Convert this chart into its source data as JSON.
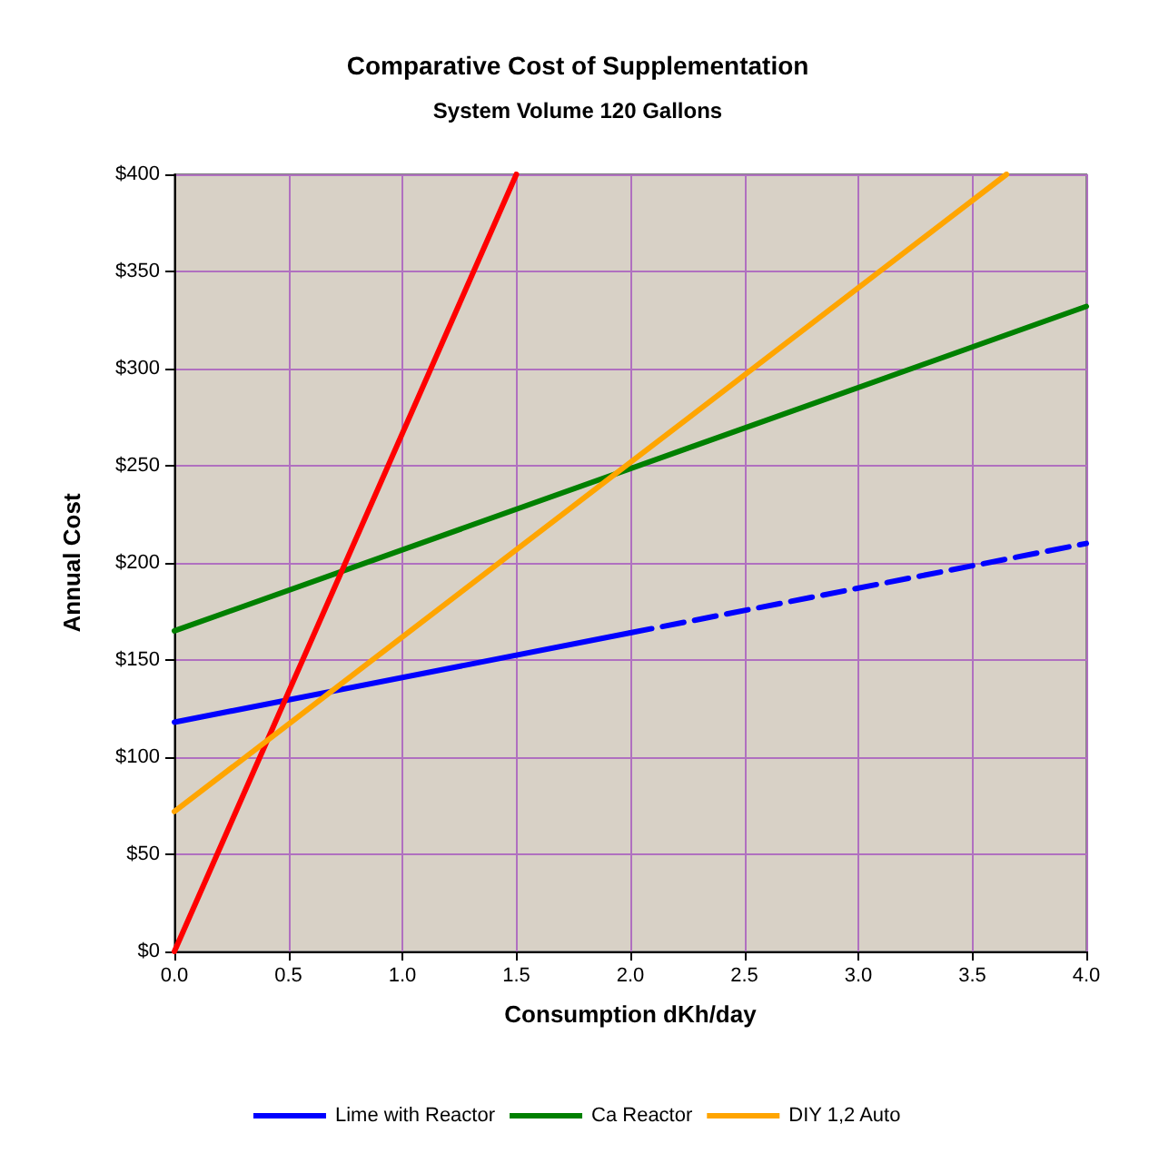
{
  "chart_data": {
    "type": "line",
    "title": "Comparative Cost of Supplementation",
    "subtitle": "System Volume 120 Gallons",
    "xlabel": "Consumption dKh/day",
    "ylabel": "Annual Cost",
    "xlim": [
      0,
      4
    ],
    "xticks": [
      {
        "value": 0,
        "label": "0.0"
      },
      {
        "value": 0.5,
        "label": "0.5"
      },
      {
        "value": 1,
        "label": "1.0"
      },
      {
        "value": 1.5,
        "label": "1.5"
      },
      {
        "value": 2,
        "label": "2.0"
      },
      {
        "value": 2.5,
        "label": "2.5"
      },
      {
        "value": 3,
        "label": "3.0"
      },
      {
        "value": 3.5,
        "label": "3.5"
      },
      {
        "value": 4,
        "label": "4.0"
      }
    ],
    "ylim": [
      0,
      400
    ],
    "yticks": [
      {
        "value": 0,
        "label": "$0"
      },
      {
        "value": 50,
        "label": "$50"
      },
      {
        "value": 100,
        "label": "$100"
      },
      {
        "value": 150,
        "label": "$150"
      },
      {
        "value": 200,
        "label": "$200"
      },
      {
        "value": 250,
        "label": "$250"
      },
      {
        "value": 300,
        "label": "$300"
      },
      {
        "value": 350,
        "label": "$350"
      },
      {
        "value": 400,
        "label": "$400"
      }
    ],
    "grid": true,
    "legend": "bottom",
    "marker": "none",
    "series": [
      {
        "name": "Lime with Reactor",
        "color": "#0000ff",
        "x": [
          0,
          2
        ],
        "values": [
          118,
          164
        ],
        "line_style": "solid"
      },
      {
        "color": "#0000ff",
        "x": [
          2,
          4
        ],
        "values": [
          164,
          210
        ],
        "line_style": "dashed"
      },
      {
        "name": "Ca Reactor",
        "color": "#008000",
        "x": [
          0,
          4
        ],
        "values": [
          165,
          332
        ],
        "line_style": "solid"
      },
      {
        "color": "#ff0000",
        "x": [
          0,
          1.5
        ],
        "values": [
          0,
          400
        ],
        "line_style": "solid"
      },
      {
        "name": "DIY 1,2 Auto",
        "color": "#ffa500",
        "x": [
          0,
          3.65
        ],
        "values": [
          72,
          400
        ],
        "line_style": "solid"
      }
    ]
  }
}
